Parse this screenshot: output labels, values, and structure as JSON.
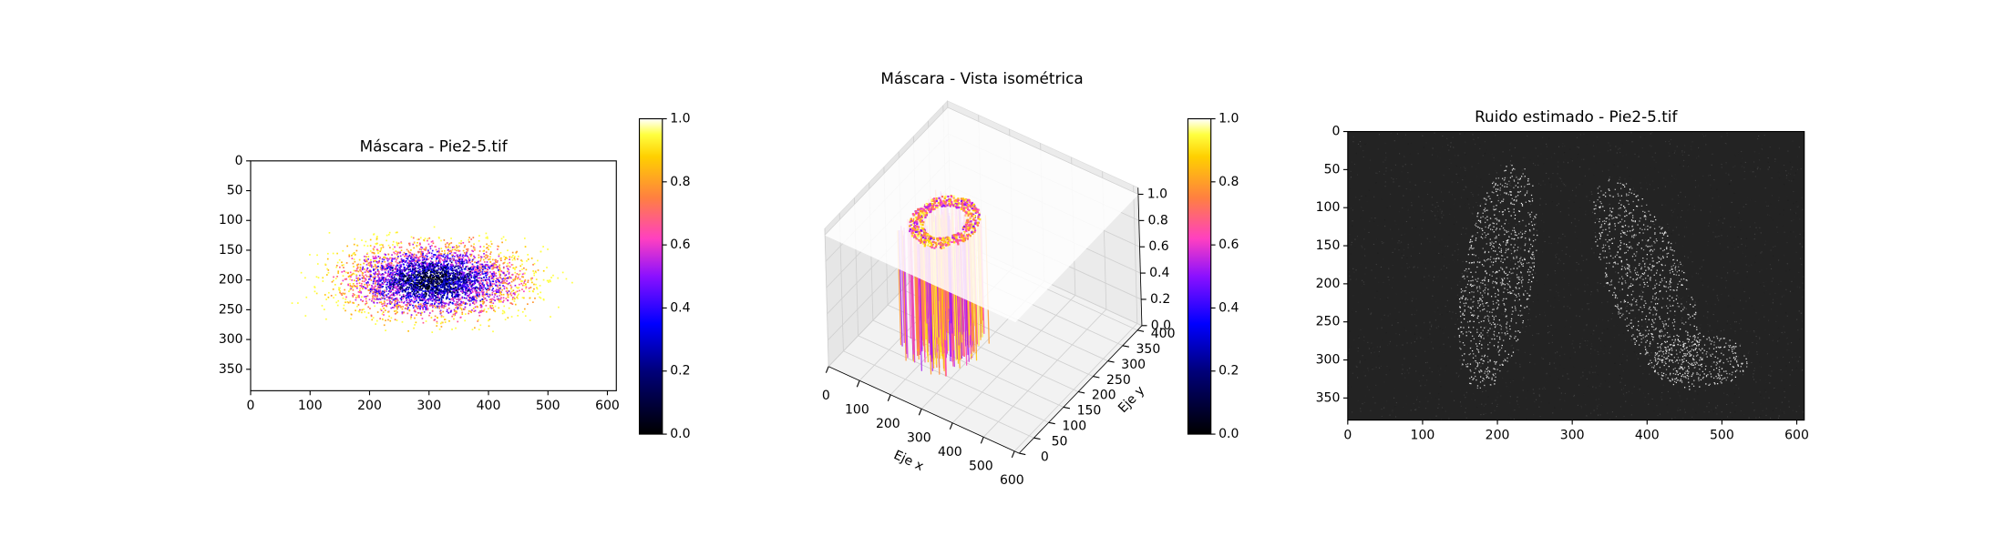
{
  "chart_data": [
    {
      "type": "image",
      "title": "Máscara - Pie2-5.tif",
      "colormap": "gnuplot2",
      "xlim": [
        0,
        615
      ],
      "ylim": [
        386,
        0
      ],
      "xticks": [
        0,
        100,
        200,
        300,
        400,
        500,
        600
      ],
      "yticks": [
        0,
        50,
        100,
        150,
        200,
        250,
        300,
        350
      ],
      "colorbar": {
        "clim": [
          0,
          1
        ],
        "ticks": [
          {
            "value": 0,
            "label": "0.0"
          },
          {
            "value": 0.2,
            "label": "0.2"
          },
          {
            "value": 0.4,
            "label": "0.4"
          },
          {
            "value": 0.6,
            "label": "0.6"
          },
          {
            "value": 0.8,
            "label": "0.8"
          },
          {
            "value": 1,
            "label": "1.0"
          }
        ]
      }
    },
    {
      "type": "surface3d",
      "title": "Máscara - Vista isométrica",
      "xlabel": "Eje x",
      "ylabel": "Eje y",
      "colormap": "gnuplot2",
      "xlim": [
        0,
        615
      ],
      "ylim": [
        0,
        415
      ],
      "zlim": [
        0,
        1.05
      ],
      "xticks": [
        0,
        100,
        200,
        300,
        400,
        500,
        600
      ],
      "yticks": [
        0,
        50,
        100,
        150,
        200,
        250,
        300,
        350,
        400
      ],
      "zticks": [
        {
          "value": 0,
          "label": "0.0"
        },
        {
          "value": 0.2,
          "label": "0.2"
        },
        {
          "value": 0.4,
          "label": "0.4"
        },
        {
          "value": 0.6,
          "label": "0.6"
        },
        {
          "value": 0.8,
          "label": "0.8"
        },
        {
          "value": 1,
          "label": "1.0"
        }
      ],
      "colorbar": {
        "clim": [
          0,
          1
        ],
        "ticks": [
          {
            "value": 0,
            "label": "0.0"
          },
          {
            "value": 0.2,
            "label": "0.2"
          },
          {
            "value": 0.4,
            "label": "0.4"
          },
          {
            "value": 0.6,
            "label": "0.6"
          },
          {
            "value": 0.8,
            "label": "0.8"
          },
          {
            "value": 1,
            "label": "1.0"
          }
        ]
      }
    },
    {
      "type": "image",
      "title": "Ruido estimado - Pie2-5.tif",
      "colormap": "gray",
      "xlim": [
        0,
        610
      ],
      "ylim": [
        379,
        0
      ],
      "xticks": [
        0,
        100,
        200,
        300,
        400,
        500,
        600
      ],
      "yticks": [
        0,
        50,
        100,
        150,
        200,
        250,
        300,
        350
      ]
    }
  ]
}
